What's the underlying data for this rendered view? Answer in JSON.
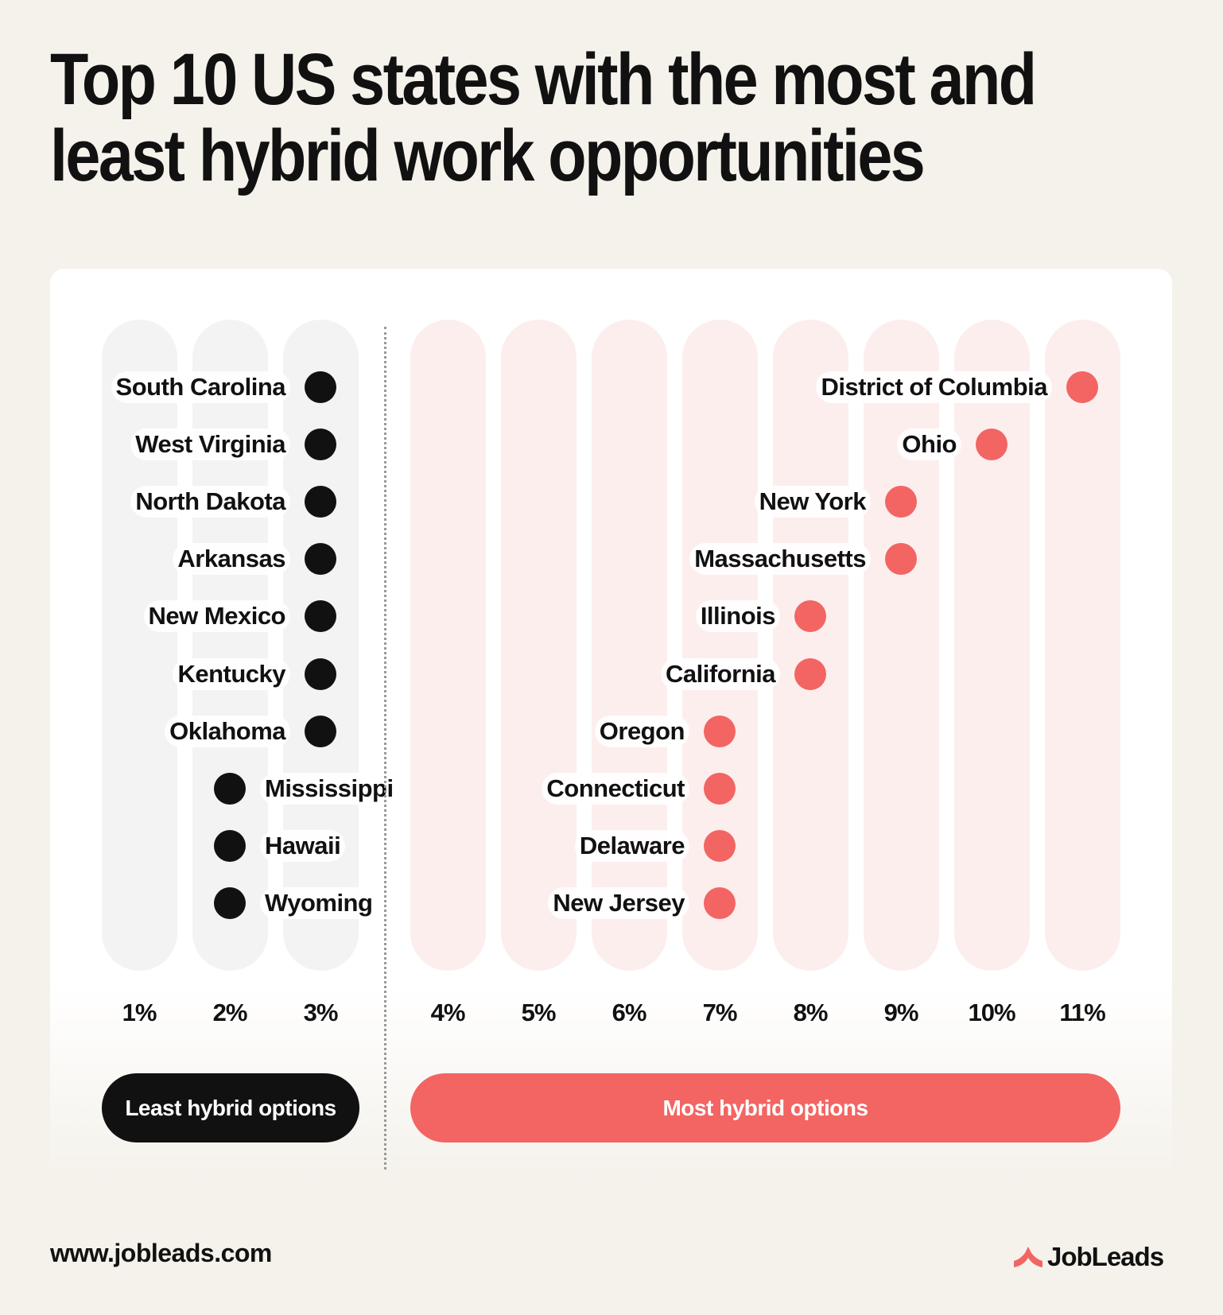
{
  "title_line1": "Top 10 US states with the most and",
  "title_line2": "least hybrid work opportunities",
  "footer": {
    "url": "www.jobleads.com",
    "brand": "JobLeads"
  },
  "colors": {
    "least": "#111111",
    "most": "#f26563",
    "least_column": "#f3f3f3",
    "most_column": "#fdeeee",
    "background": "#f5f2ec"
  },
  "chart_data": {
    "type": "scatter",
    "x_ticks": [
      "1%",
      "2%",
      "3%",
      "4%",
      "5%",
      "6%",
      "7%",
      "8%",
      "9%",
      "10%",
      "11%"
    ],
    "xlim": [
      1,
      11
    ],
    "grid": false,
    "legend_position": "bottom",
    "series": [
      {
        "name": "Least hybrid options",
        "color": "#111111",
        "points": [
          {
            "state": "South Carolina",
            "value": 3
          },
          {
            "state": "West Virginia",
            "value": 3
          },
          {
            "state": "North Dakota",
            "value": 3
          },
          {
            "state": "Arkansas",
            "value": 3
          },
          {
            "state": "New Mexico",
            "value": 3
          },
          {
            "state": "Kentucky",
            "value": 3
          },
          {
            "state": "Oklahoma",
            "value": 3
          },
          {
            "state": "Mississippi",
            "value": 2
          },
          {
            "state": "Hawaii",
            "value": 2
          },
          {
            "state": "Wyoming",
            "value": 2
          }
        ]
      },
      {
        "name": "Most hybrid options",
        "color": "#f26563",
        "points": [
          {
            "state": "District of Columbia",
            "value": 11
          },
          {
            "state": "Ohio",
            "value": 10
          },
          {
            "state": "New York",
            "value": 9
          },
          {
            "state": "Massachusetts",
            "value": 9
          },
          {
            "state": "Illinois",
            "value": 8
          },
          {
            "state": "California",
            "value": 8
          },
          {
            "state": "Oregon",
            "value": 7
          },
          {
            "state": "Connecticut",
            "value": 7
          },
          {
            "state": "Delaware",
            "value": 7
          },
          {
            "state": "New Jersey",
            "value": 7
          }
        ]
      }
    ]
  }
}
